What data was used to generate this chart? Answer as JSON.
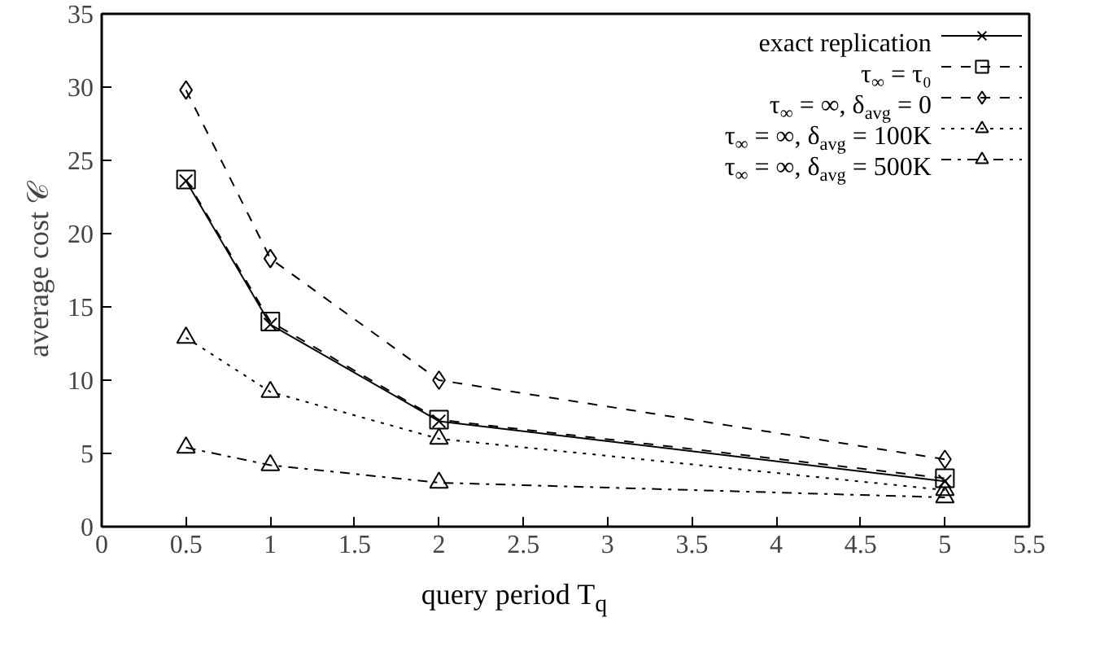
{
  "chart_data": {
    "type": "line",
    "xlabel": "query period T$_{q}$",
    "ylabel": "average cost 𝒞",
    "x": [
      0.5,
      1,
      2,
      5
    ],
    "xlim": [
      0,
      5.5
    ],
    "xticks": [
      0,
      0.5,
      1,
      1.5,
      2,
      2.5,
      3,
      3.5,
      4,
      4.5,
      5,
      5.5
    ],
    "ylim": [
      0,
      35
    ],
    "yticks": [
      0,
      5,
      10,
      15,
      20,
      25,
      30,
      35
    ],
    "grid": false,
    "legend": "top right",
    "series": [
      {
        "name": "exact replication",
        "color": "#000000",
        "marker": "cross",
        "line_style": "solid",
        "values": [
          23.6,
          13.8,
          7.2,
          3.1
        ]
      },
      {
        "name": "τ$_{∞}$ = τ₀",
        "color": "#000000",
        "marker": "square",
        "line_style": "dashed",
        "values": [
          23.7,
          14.0,
          7.3,
          3.3
        ]
      },
      {
        "name": "τ$_{∞}$ = ∞, δ$_{avg}$ = 0",
        "color": "#000000",
        "marker": "diamond",
        "line_style": "dashed",
        "values": [
          29.8,
          18.3,
          10.0,
          4.6
        ]
      },
      {
        "name": "τ$_{∞}$ = ∞, δ$_{avg}$ = 100K",
        "color": "#000000",
        "marker": "triangle",
        "line_style": "dotted",
        "values": [
          12.9,
          9.2,
          6.0,
          2.5
        ]
      },
      {
        "name": "τ$_{∞}$ = ∞, δ$_{avg}$ = 500K",
        "color": "#000000",
        "marker": "triangle",
        "line_style": "dashdot",
        "values": [
          5.4,
          4.2,
          3.0,
          2.0
        ]
      }
    ]
  }
}
